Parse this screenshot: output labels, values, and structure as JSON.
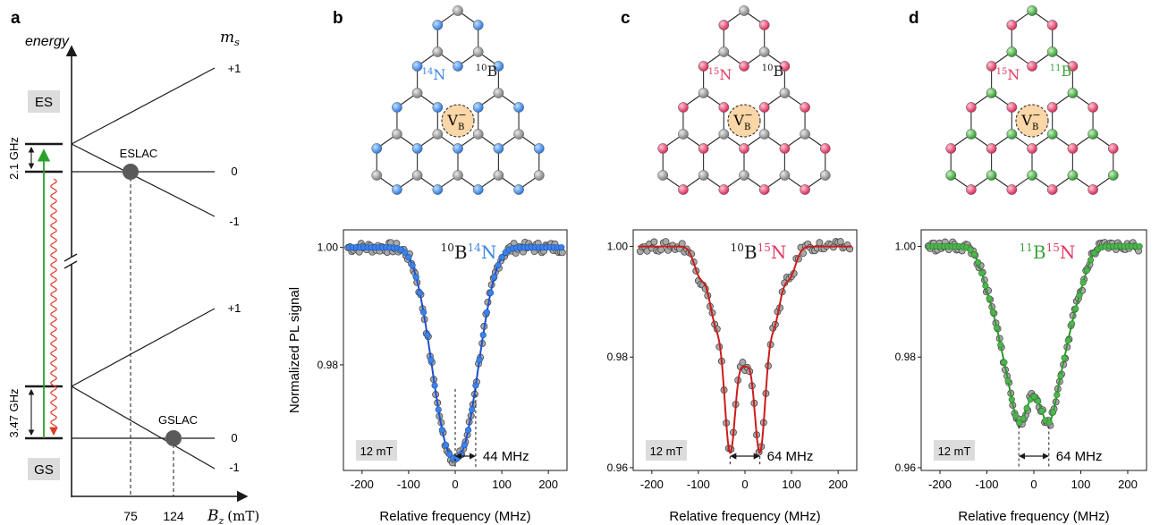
{
  "panels": {
    "a": {
      "letter": "a",
      "energy_label": "energy",
      "ms_label": "m",
      "ms_sub": "s",
      "ms_values": [
        "+1",
        "0",
        "-1",
        "+1",
        "0",
        "-1"
      ],
      "es_label": "ES",
      "gs_label": "GS",
      "es_splitting": "2.1 GHz",
      "gs_splitting": "3.47 GHz",
      "eslac_label": "ESLAC",
      "gslac_label": "GSLAC",
      "x_ticks": [
        "75",
        "124"
      ],
      "x_axis_label": "B",
      "x_axis_sub": "z",
      "x_axis_unit": "(mT)"
    },
    "b": {
      "letter": "b",
      "n_label": "N",
      "n_mass": "14",
      "b_label": "B",
      "b_mass": "10",
      "vb": "V",
      "vb_sub": "B",
      "vb_sup": "−"
    },
    "c": {
      "letter": "c",
      "n_label": "N",
      "n_mass": "15",
      "b_label": "B",
      "b_mass": "10",
      "vb": "V",
      "vb_sub": "B",
      "vb_sup": "−"
    },
    "d": {
      "letter": "d",
      "n_label": "N",
      "n_mass": "15",
      "b_label": "B",
      "b_mass": "11",
      "vb": "V",
      "vb_sub": "B",
      "vb_sup": "−"
    }
  },
  "colors": {
    "blue": "#3a84e6",
    "red": "#e23b63",
    "green": "#3aa33a",
    "gray_atom": "#9a9a9a",
    "vb_fill": "#fbd6a6",
    "fit_blue": "#1c50d0",
    "fit_red": "#cc1c1c",
    "fit_green": "#2b9a2b",
    "excitation": "#2aa02a",
    "emission": "#e03a2a",
    "badge": "#dcdcdc"
  },
  "chart_data": [
    {
      "type": "scatter",
      "name": "10B14N",
      "title_parts": [
        {
          "sup": "10",
          "t": "B",
          "c": "dark"
        },
        {
          "sup": "14",
          "t": "N",
          "c": "blue"
        }
      ],
      "xlabel": "Relative frequency (MHz)",
      "ylabel": "Normalized PL signal",
      "xlim": [
        -240,
        240
      ],
      "ylim": [
        0.962,
        1.003
      ],
      "xticks": [
        -200,
        -100,
        0,
        100,
        200
      ],
      "yticks": [
        1.0,
        0.98
      ],
      "ytick_labels": [
        "1.00",
        "0.98"
      ],
      "field_label": "12 mT",
      "splitting_label": "44 MHz",
      "splitting_marks": [
        0,
        44
      ],
      "model": {
        "baseline": 1.0,
        "dips": [
          [
            -66,
            0.0043,
            22
          ],
          [
            -22,
            0.0171,
            22
          ],
          [
            22,
            0.0171,
            22
          ],
          [
            66,
            0.0043,
            22
          ],
          [
            -44,
            0.0086,
            22
          ],
          [
            0,
            0.0129,
            22
          ],
          [
            44,
            0.0086,
            22
          ]
        ]
      },
      "points_x_range": [
        -230,
        230,
        4
      ],
      "color_key": "blue",
      "fit_key": "fit_blue"
    },
    {
      "type": "scatter",
      "name": "10B15N",
      "title_parts": [
        {
          "sup": "10",
          "t": "B",
          "c": "dark"
        },
        {
          "sup": "15",
          "t": "N",
          "c": "red"
        }
      ],
      "xlabel": "Relative frequency (MHz)",
      "ylabel": "",
      "xlim": [
        -240,
        240
      ],
      "ylim": [
        0.9595,
        1.003
      ],
      "xticks": [
        -200,
        -100,
        0,
        100,
        200
      ],
      "yticks": [
        1.0,
        0.98,
        0.96
      ],
      "ytick_labels": [
        "1.00",
        "0.98",
        "0.96"
      ],
      "field_label": "12 mT",
      "splitting_label": "64 MHz",
      "splitting_marks": [
        -32,
        32
      ],
      "model": {
        "baseline": 1.0,
        "dips": [
          [
            -96,
            0.0053,
            13
          ],
          [
            -32,
            0.0358,
            13
          ],
          [
            32,
            0.0358,
            13
          ],
          [
            96,
            0.0053,
            13
          ],
          [
            -64,
            0.0125,
            13
          ],
          [
            0,
            0.0183,
            13
          ],
          [
            64,
            0.0125,
            13
          ]
        ]
      },
      "points_x_range": [
        -225,
        225,
        5
      ],
      "color_key": "gray_atom",
      "fit_key": "fit_red"
    },
    {
      "type": "scatter",
      "name": "11B15N",
      "title_parts": [
        {
          "sup": "11",
          "t": "B",
          "c": "green"
        },
        {
          "sup": "15",
          "t": "N",
          "c": "red"
        }
      ],
      "xlabel": "Relative frequency (MHz)",
      "ylabel": "",
      "xlim": [
        -240,
        240
      ],
      "ylim": [
        0.9595,
        1.003
      ],
      "xticks": [
        -200,
        -100,
        0,
        100,
        200
      ],
      "yticks": [
        1.0,
        0.98,
        0.96
      ],
      "ytick_labels": [
        "1.00",
        "0.98",
        "0.96"
      ],
      "field_label": "12 mT",
      "splitting_label": "64 MHz",
      "splitting_marks": [
        -32,
        32
      ],
      "model": {
        "baseline": 1.0,
        "dips": [
          [
            -96,
            0.0062,
            18
          ],
          [
            -32,
            0.0255,
            18
          ],
          [
            32,
            0.0255,
            18
          ],
          [
            96,
            0.0062,
            18
          ],
          [
            -64,
            0.014,
            18
          ],
          [
            0,
            0.0166,
            18
          ],
          [
            64,
            0.014,
            18
          ]
        ]
      },
      "points_x_range": [
        -225,
        225,
        4
      ],
      "color_key": "gray_atom",
      "fit_key": "fit_green"
    }
  ]
}
